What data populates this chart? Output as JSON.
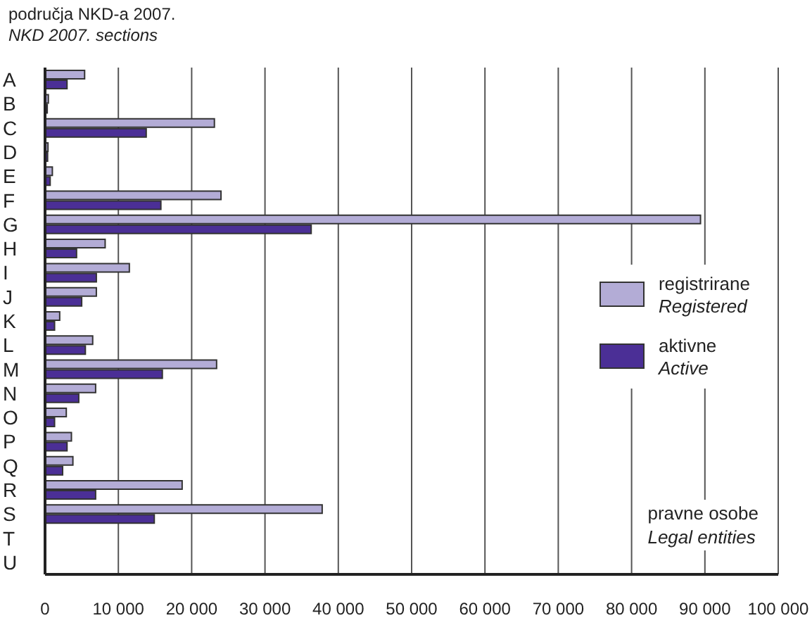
{
  "chart_data": {
    "type": "bar",
    "orientation": "horizontal",
    "title": "područja NKD-a 2007.",
    "subtitle": "NKD 2007. sections",
    "categories": [
      "A",
      "B",
      "C",
      "D",
      "E",
      "F",
      "G",
      "H",
      "I",
      "J",
      "K",
      "L",
      "M",
      "N",
      "O",
      "P",
      "Q",
      "R",
      "S",
      "T",
      "U"
    ],
    "series": [
      {
        "name": "registrirane\nRegistered",
        "color": "#b3acd6",
        "values": [
          5400,
          450,
          23100,
          400,
          1000,
          24000,
          89400,
          8200,
          11500,
          7000,
          2000,
          6500,
          23400,
          6900,
          2900,
          3600,
          3800,
          18700,
          37800,
          0,
          0
        ]
      },
      {
        "name": "aktivne\nActive",
        "color": "#4b2f96",
        "values": [
          3000,
          300,
          13800,
          350,
          700,
          15800,
          36300,
          4300,
          7000,
          5000,
          1300,
          5500,
          16000,
          4600,
          1300,
          3000,
          2400,
          6900,
          14900,
          0,
          0
        ]
      }
    ],
    "xlim": [
      0,
      100000
    ],
    "xticks": [
      0,
      {
        "value": 10000,
        "label": "10 000"
      },
      {
        "value": 20000,
        "label": "20 000"
      },
      {
        "value": 30000,
        "label": "30 000"
      },
      {
        "value": 40000,
        "label": "40 000"
      },
      {
        "value": 50000,
        "label": "50 000"
      },
      {
        "value": 60000,
        "label": "60 000"
      },
      {
        "value": 70000,
        "label": "70 000"
      },
      {
        "value": 80000,
        "label": "80 000"
      },
      {
        "value": 90000,
        "label": "90 000"
      },
      {
        "value": 100000,
        "label": "100 000"
      }
    ],
    "grid": "x",
    "legend": "right",
    "annotations": [
      "pravne osobe\nLegal entities"
    ]
  }
}
